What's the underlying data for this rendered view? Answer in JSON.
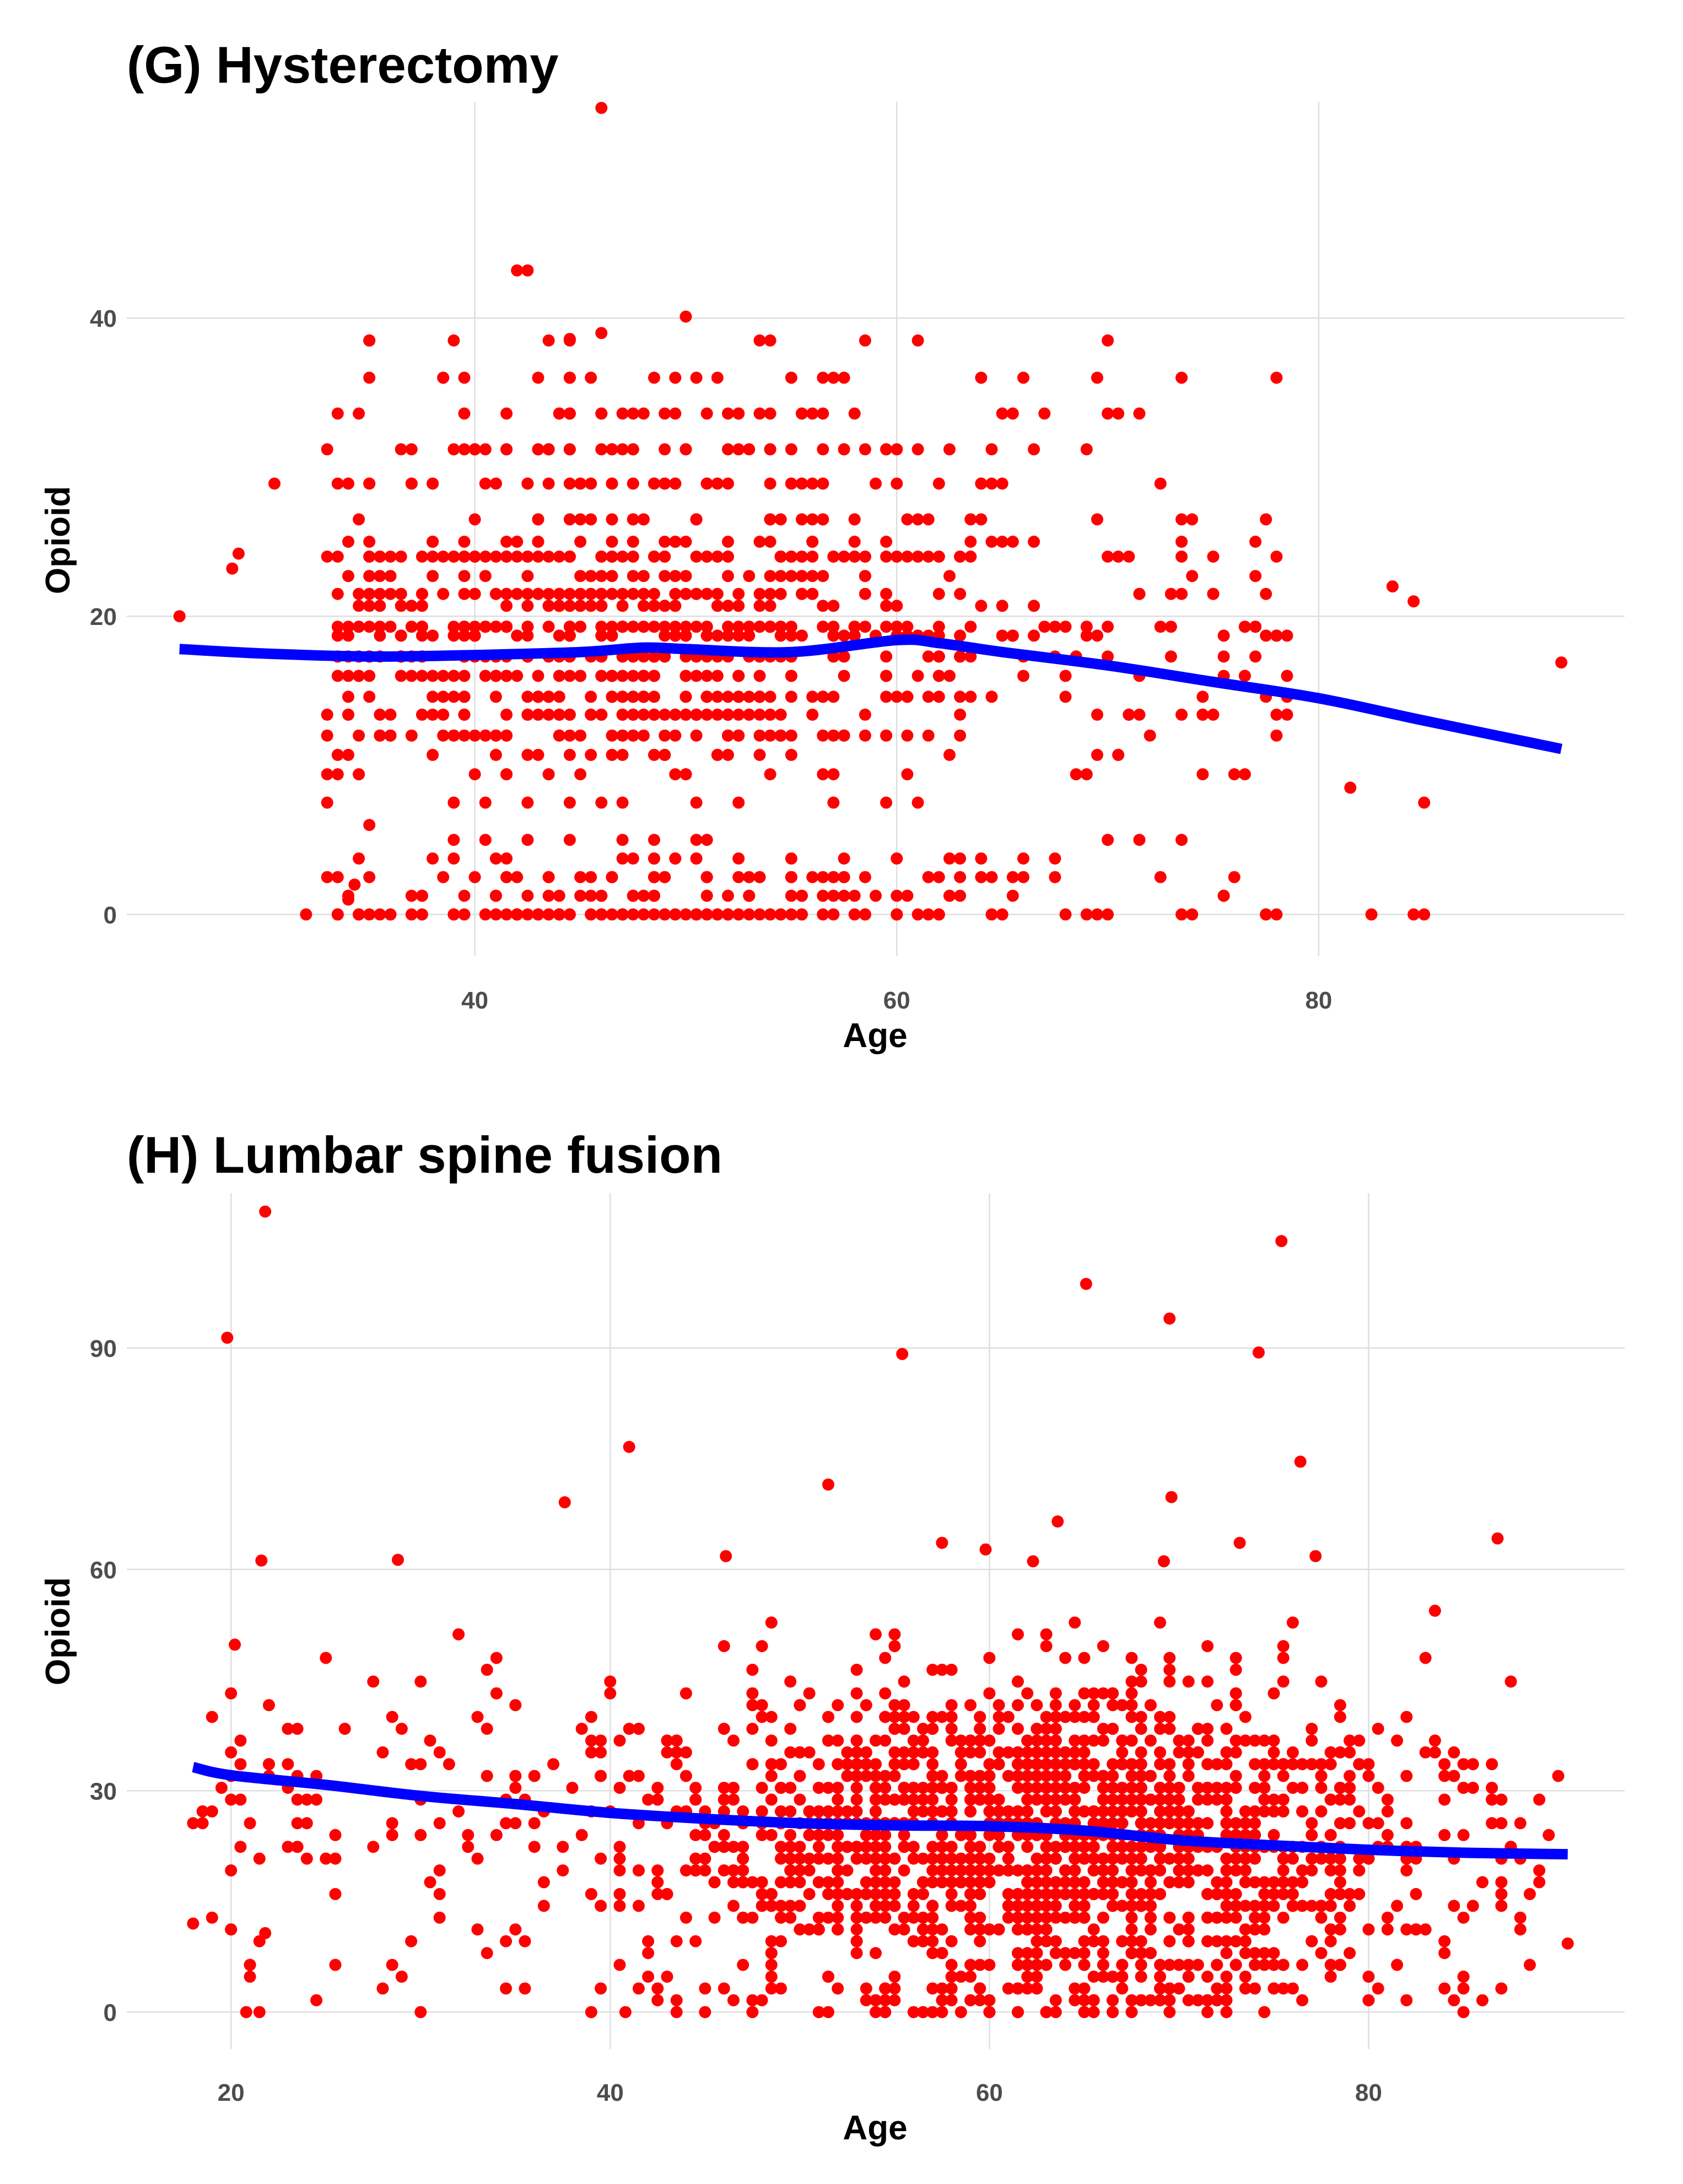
{
  "colors": {
    "points": "#ff0000",
    "trend": "#0000ff",
    "grid": "#dedede",
    "tick": "#4d4d4d",
    "title": "#000000"
  },
  "chart_data": [
    {
      "id": "g",
      "type": "scatter",
      "title": "(G) Hysterectomy",
      "xlabel": "Age",
      "ylabel": "Opioid",
      "xlim": [
        23.5,
        94.5
      ],
      "ylim": [
        -2.8,
        54.5
      ],
      "xticks": [
        40,
        60,
        80
      ],
      "yticks": [
        0,
        20,
        40
      ],
      "grid": true,
      "legend": "none",
      "point_levels": [
        0,
        1.25,
        2.5,
        3.75,
        5,
        7.5,
        9.4,
        10.7,
        12,
        13.4,
        14.6,
        16,
        17.3,
        18.7,
        19.3,
        20.7,
        21.5,
        22.7,
        24,
        25,
        26.5,
        28.9,
        31.2,
        33.6,
        36,
        38.5
      ],
      "point_levels_weight": [
        9,
        4,
        4,
        2,
        1,
        1,
        2,
        2,
        5,
        6,
        7,
        6,
        8,
        6,
        8,
        4,
        6,
        3,
        8,
        3,
        3,
        5,
        4,
        3,
        2,
        1
      ],
      "point_age_range": [
        33,
        79
      ],
      "point_age_mode": 48,
      "outliers": [
        {
          "x": 26,
          "y": 20
        },
        {
          "x": 28.5,
          "y": 23.2
        },
        {
          "x": 28.8,
          "y": 24.2
        },
        {
          "x": 30.5,
          "y": 28.9
        },
        {
          "x": 32,
          "y": 0
        },
        {
          "x": 33.5,
          "y": 0
        },
        {
          "x": 34,
          "y": 1
        },
        {
          "x": 34.3,
          "y": 2
        },
        {
          "x": 35,
          "y": 6
        },
        {
          "x": 46,
          "y": 54.1
        },
        {
          "x": 42,
          "y": 43.2
        },
        {
          "x": 42.5,
          "y": 43.2
        },
        {
          "x": 50,
          "y": 40.1
        },
        {
          "x": 46,
          "y": 39
        },
        {
          "x": 44.5,
          "y": 38.6
        },
        {
          "x": 52.5,
          "y": 7.5
        },
        {
          "x": 81.5,
          "y": 8.5
        },
        {
          "x": 85,
          "y": 7.5
        },
        {
          "x": 91.5,
          "y": 16.9
        },
        {
          "x": 83.5,
          "y": 22
        },
        {
          "x": 84.5,
          "y": 21
        },
        {
          "x": 82.5,
          "y": 0
        },
        {
          "x": 84.5,
          "y": 0
        },
        {
          "x": 85,
          "y": 0
        }
      ],
      "trend": {
        "x": [
          26,
          30,
          35,
          40,
          45,
          48,
          50,
          55,
          60,
          62,
          65,
          70,
          75,
          80,
          85,
          91.5
        ],
        "y": [
          17.8,
          17.5,
          17.3,
          17.4,
          17.6,
          17.9,
          17.8,
          17.6,
          18.4,
          18.2,
          17.6,
          16.7,
          15.6,
          14.5,
          13,
          11.1
        ]
      }
    },
    {
      "id": "h",
      "type": "scatter",
      "title": "(H) Lumbar spine fusion",
      "xlabel": "Age",
      "ylabel": "Opioid",
      "xlim": [
        14.5,
        93.5
      ],
      "ylim": [
        -5,
        111
      ],
      "xticks": [
        20,
        40,
        60,
        80
      ],
      "yticks": [
        0,
        30,
        60,
        90
      ],
      "grid": true,
      "legend": "none",
      "point_age_range": [
        18,
        90
      ],
      "point_age_mode": 63,
      "outliers": [
        {
          "x": 21.8,
          "y": 108.5
        },
        {
          "x": 19.8,
          "y": 91.4
        },
        {
          "x": 55.4,
          "y": 89.2
        },
        {
          "x": 65.1,
          "y": 98.7
        },
        {
          "x": 75.4,
          "y": 104.5
        },
        {
          "x": 69.5,
          "y": 94
        },
        {
          "x": 74.2,
          "y": 89.4
        },
        {
          "x": 41,
          "y": 76.6
        },
        {
          "x": 37.6,
          "y": 69.1
        },
        {
          "x": 51.5,
          "y": 71.5
        },
        {
          "x": 76.4,
          "y": 74.6
        },
        {
          "x": 69.6,
          "y": 69.8
        },
        {
          "x": 86.8,
          "y": 64.2
        },
        {
          "x": 21.6,
          "y": 61.2
        },
        {
          "x": 28.8,
          "y": 61.3
        },
        {
          "x": 46.1,
          "y": 61.8
        },
        {
          "x": 59.8,
          "y": 62.7
        },
        {
          "x": 63.6,
          "y": 66.5
        },
        {
          "x": 57.5,
          "y": 63.6
        },
        {
          "x": 62.3,
          "y": 61.1
        },
        {
          "x": 69.2,
          "y": 61.1
        },
        {
          "x": 77.2,
          "y": 61.8
        },
        {
          "x": 73.2,
          "y": 63.6
        },
        {
          "x": 20.2,
          "y": 49.8
        },
        {
          "x": 18,
          "y": 12
        },
        {
          "x": 20.8,
          "y": 0
        },
        {
          "x": 21.8,
          "y": 10.7
        },
        {
          "x": 90.5,
          "y": 9.3
        },
        {
          "x": 85,
          "y": 0
        },
        {
          "x": 40.8,
          "y": 0
        },
        {
          "x": 43.5,
          "y": 0
        }
      ],
      "trend": {
        "x": [
          18,
          20,
          25,
          30,
          35,
          40,
          45,
          50,
          55,
          60,
          65,
          70,
          75,
          80,
          85,
          90.5
        ],
        "y": [
          33.2,
          32.1,
          30.8,
          29.3,
          28.2,
          27,
          26.2,
          25.6,
          25.3,
          25.2,
          24.6,
          23.3,
          22.6,
          22,
          21.6,
          21.4
        ]
      }
    }
  ]
}
